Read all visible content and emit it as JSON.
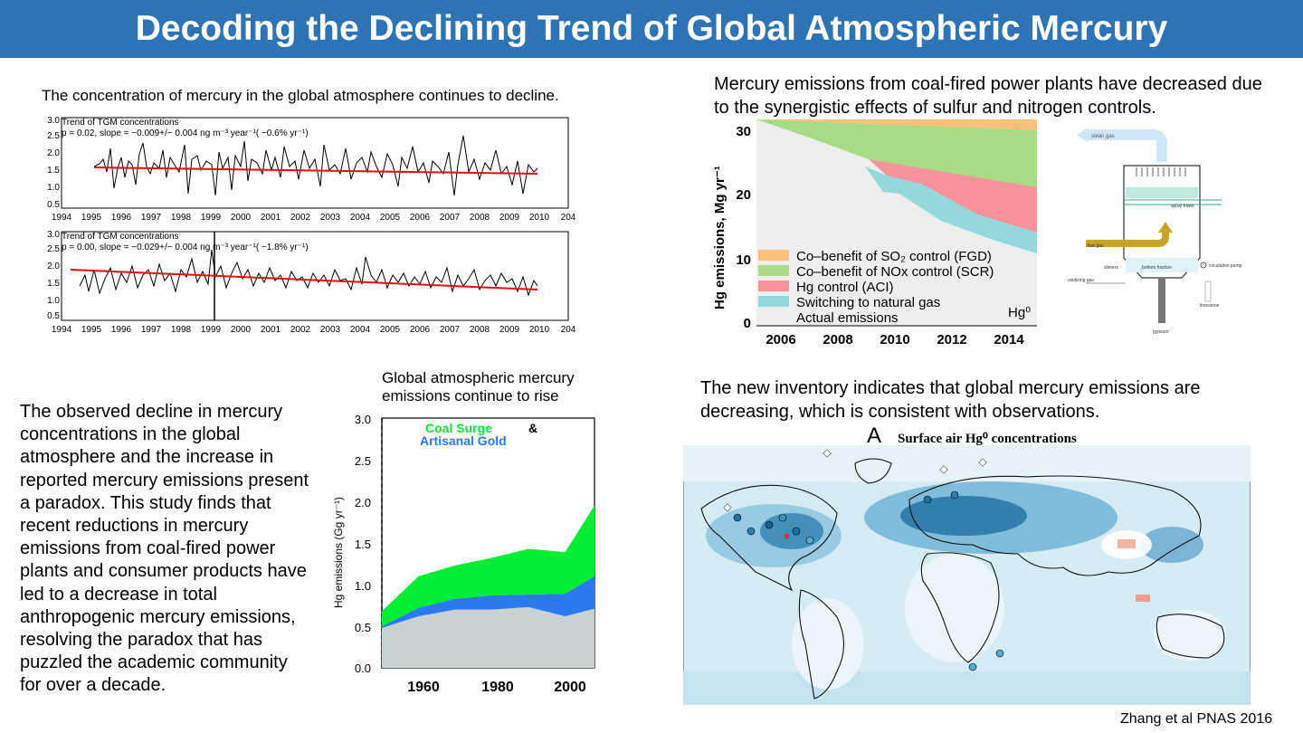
{
  "slide": {
    "title": "Decoding the Declining Trend of Global Atmospheric Mercury",
    "colors": {
      "banner": "#2e74b5",
      "title_text": "#ffffff"
    }
  },
  "tgm": {
    "caption": "The concentration of mercury in the global atmosphere continues to decline.",
    "panels": [
      {
        "legend": "Trend of TGM concentrations",
        "stats": "p = 0.02, slope = −0.009+/− 0.004 ng m⁻³ year⁻¹( −0.6% yr⁻¹)",
        "y_ticks": [
          "3.0",
          "2.5",
          "2.0",
          "1.5",
          "1.0",
          "0.5"
        ]
      },
      {
        "legend": "Trend of TGM concentrations",
        "stats": "p = 0.00, slope = −0.029+/− 0.004 ng m⁻³ year⁻¹( −1.8% yr⁻¹)",
        "y_ticks": [
          "3.0",
          "2.5",
          "2.0",
          "1.5",
          "1.0",
          "0.5"
        ]
      }
    ],
    "x_ticks": [
      "1994",
      "1995",
      "1996",
      "1997",
      "1998",
      "1999",
      "2000",
      "2001",
      "2002",
      "2003",
      "2004",
      "2005",
      "2006",
      "2007",
      "2008",
      "2009",
      "2010",
      "204"
    ]
  },
  "coal": {
    "caption": "Mercury emissions from coal-fired power plants have decreased due to the synergistic effects of sulfur and nitrogen controls.",
    "ylabel": "Hg emissions, Mg yr⁻¹",
    "y_ticks": [
      "30",
      "20",
      "10",
      "0"
    ],
    "x_ticks": [
      "2006",
      "2008",
      "2010",
      "2012",
      "2014"
    ],
    "legend": [
      {
        "label": "Co–benefit of SO₂ control (FGD)",
        "color": "#f9c07c"
      },
      {
        "label": "Co–benefit of NOx control (SCR)",
        "color": "#a7dc84"
      },
      {
        "label": "Hg control (ACI)",
        "color": "#f5939b"
      },
      {
        "label": "Switching to natural gas",
        "color": "#93d9d9"
      },
      {
        "label": "Actual emissions",
        "color": "#eeeeee"
      }
    ],
    "species": "Hg⁰"
  },
  "tower": {
    "labels": [
      "clean gas",
      "spray tower",
      "flue gas",
      "slimers",
      "bottom fraction",
      "circulation pump",
      "oxidizing gas",
      "limestone",
      "gypsum"
    ]
  },
  "rise": {
    "caption": "Global atmospheric mercury emissions continue to rise",
    "ylabel": "Hg emissions (Gg yr⁻¹)",
    "y_ticks": [
      "3.0",
      "2.5",
      "2.0",
      "1.5",
      "1.0",
      "0.5",
      "0.0"
    ],
    "x_ticks": [
      "1960",
      "1980",
      "2000"
    ],
    "legend_coal": "Coal Surge",
    "legend_amp": "&",
    "legend_gold": "Artisanal Gold",
    "colors": {
      "coal": "#00ee33",
      "gold": "#2c78f0",
      "base": "#c8d2d2"
    },
    "chart_data": {
      "type": "area",
      "x": [
        1950,
        1960,
        1970,
        1980,
        1990,
        2000,
        2008
      ],
      "series": [
        {
          "name": "base",
          "values": [
            0.48,
            0.62,
            0.7,
            0.7,
            0.73,
            0.62,
            0.71
          ]
        },
        {
          "name": "Artisanal Gold",
          "values": [
            0.02,
            0.1,
            0.13,
            0.17,
            0.15,
            0.27,
            0.39
          ]
        },
        {
          "name": "Coal Surge",
          "values": [
            0.18,
            0.38,
            0.4,
            0.45,
            0.55,
            0.5,
            0.85
          ]
        }
      ],
      "ylim": [
        0,
        3.0
      ]
    }
  },
  "text": {
    "paragraph": "The observed decline in mercury concentrations in the global atmosphere and the increase in reported mercury emissions present a paradox. This study finds that recent reductions in mercury emissions from coal-fired power plants and consumer products have led to a decrease in total anthropogenic mercury emissions, resolving the paradox that has puzzled the academic community for over a decade."
  },
  "map": {
    "caption": "The new inventory indicates that global mercury emissions are decreasing, which is consistent with observations.",
    "panel": "A",
    "title": "Surface air Hg⁰ concentrations"
  },
  "citation": "Zhang et al PNAS 2016"
}
